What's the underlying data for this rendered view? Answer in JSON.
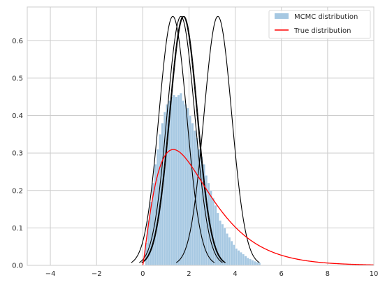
{
  "chart_data": {
    "type": "line",
    "title": "",
    "xlabel": "",
    "ylabel": "",
    "xlim": [
      -5,
      10
    ],
    "ylim": [
      0,
      0.69
    ],
    "x_ticks": [
      -4,
      -2,
      0,
      2,
      4,
      6,
      8,
      10
    ],
    "y_ticks": [
      0.0,
      0.1,
      0.2,
      0.3,
      0.4,
      0.5,
      0.6
    ],
    "grid": true,
    "legend_position": "top-right",
    "legend": [
      {
        "label": "MCMC distribution",
        "kind": "patch",
        "color": "#a6c8e2"
      },
      {
        "label": "True distribution",
        "kind": "line",
        "color": "#ff0000"
      }
    ],
    "histogram": {
      "name": "MCMC distribution",
      "color": "#a6c8e2",
      "bin_start": 0.1,
      "bin_width": 0.1,
      "heights": [
        0.06,
        0.12,
        0.17,
        0.22,
        0.27,
        0.31,
        0.35,
        0.38,
        0.41,
        0.43,
        0.44,
        0.45,
        0.455,
        0.45,
        0.455,
        0.46,
        0.44,
        0.43,
        0.42,
        0.4,
        0.38,
        0.36,
        0.34,
        0.31,
        0.29,
        0.27,
        0.24,
        0.22,
        0.2,
        0.18,
        0.16,
        0.14,
        0.12,
        0.11,
        0.1,
        0.085,
        0.075,
        0.065,
        0.055,
        0.045,
        0.04,
        0.035,
        0.03,
        0.025,
        0.02,
        0.017,
        0.014,
        0.011,
        0.009,
        0.007
      ]
    },
    "true_distribution": {
      "name": "True distribution",
      "color": "#ff0000",
      "family": "gamma",
      "shape": 2.2,
      "scale": 1.1
    },
    "proposal_curves": {
      "color": "#000000",
      "family": "normal",
      "sigma": 0.6,
      "means": [
        1.3,
        1.65,
        1.75,
        1.78,
        3.25
      ]
    }
  }
}
